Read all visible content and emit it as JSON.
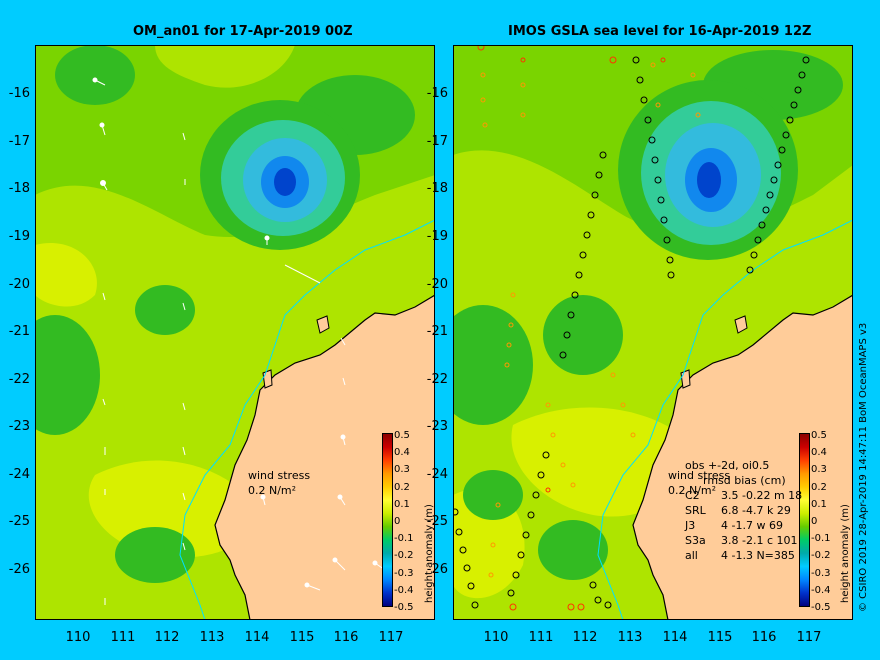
{
  "left_panel": {
    "title": "OM_an01 for 17-Apr-2019 00Z",
    "wind_label_1": "wind stress",
    "wind_label_2": "0.2 N/m²"
  },
  "right_panel": {
    "title": "IMOS GSLA sea level  for 16-Apr-2019 12Z",
    "wind_label_1": "wind stress",
    "wind_label_2": "0.2 N/m²",
    "stats_header_1": "obs +-2d, oi0.5",
    "stats_header_2": "rmsd  bias (cm)",
    "stats": [
      {
        "label": "C2",
        "text": "3.5 -0.22 m 18"
      },
      {
        "label": "SRL",
        "text": "6.8 -4.7 k 29"
      },
      {
        "label": "J3",
        "text": "4 -1.7 w 69"
      },
      {
        "label": "S3a",
        "text": "3.8 -2.1 c 101"
      },
      {
        "label": "all",
        "text": "4 -1.3 N=385"
      }
    ]
  },
  "colorbar": {
    "title": "height anomaly (m)",
    "ticks": [
      "0.5",
      "0.4",
      "0.3",
      "0.2",
      "0.1",
      "0",
      "-0.1",
      "-0.2",
      "-0.3",
      "-0.4",
      "-0.5"
    ],
    "colors": [
      "#8b0000",
      "#cc0000",
      "#ff4000",
      "#ff9900",
      "#ffcc00",
      "#ffff33",
      "#ccee00",
      "#66cc00",
      "#00cc66",
      "#00aaaa",
      "#00ccff",
      "#0088ff",
      "#0033cc",
      "#000080"
    ]
  },
  "axes": {
    "lat_labels": [
      "-16",
      "-17",
      "-18",
      "-19",
      "-20",
      "-21",
      "-22",
      "-23",
      "-24",
      "-25",
      "-26"
    ],
    "lon_labels": [
      "110",
      "111",
      "112",
      "113",
      "114",
      "115",
      "116",
      "117"
    ]
  },
  "credit": "© CSIRO 2019   28-Apr-2019 14:47:11 BoM OceanMAPS v3",
  "colors": {
    "background": "#00ccff",
    "land": "#ffcc99",
    "coast": "#000000",
    "shelf": "#00e0ff",
    "field_green": "#7ad400",
    "field_yellow": "#d8f000",
    "field_lime": "#aee400",
    "field_darkgreen": "#33bb22",
    "field_teal": "#33cc99",
    "field_cyan": "#33bbdd",
    "field_blue": "#1166ee"
  }
}
